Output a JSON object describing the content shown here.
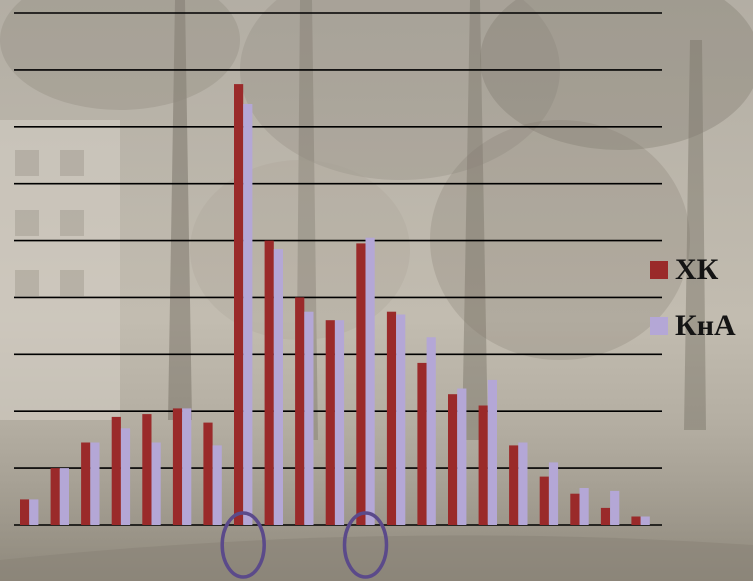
{
  "colors": {
    "series_xk": "#9a2a2a",
    "series_kna": "#b4a7d6",
    "gridline": "#000000",
    "marker_circle": "#5b4a8a",
    "background": "#bdb6aa"
  },
  "chart_data": {
    "type": "bar",
    "title": "",
    "xlabel": "",
    "ylabel": "",
    "grid": true,
    "legend_position": "right",
    "ylim": [
      0,
      9
    ],
    "y_gridlines": [
      0,
      1,
      2,
      3,
      4,
      5,
      6,
      7,
      8,
      9
    ],
    "categories": [
      "",
      "",
      "",
      "",
      "",
      "",
      "",
      "",
      "",
      "",
      "",
      "",
      "",
      "",
      "",
      "",
      "",
      "",
      "",
      "",
      ""
    ],
    "series": [
      {
        "name": "ХК",
        "color": "#9a2a2a",
        "values": [
          0.45,
          1.0,
          1.45,
          1.9,
          1.95,
          2.05,
          1.8,
          7.75,
          5.0,
          4.0,
          3.6,
          4.95,
          3.75,
          2.85,
          2.3,
          2.1,
          1.4,
          0.85,
          0.55,
          0.3,
          0.15
        ]
      },
      {
        "name": "КнА",
        "color": "#b4a7d6",
        "values": [
          0.45,
          1.0,
          1.45,
          1.7,
          1.45,
          2.05,
          1.4,
          7.4,
          4.85,
          3.75,
          3.6,
          5.05,
          3.7,
          3.3,
          2.4,
          2.55,
          1.45,
          1.1,
          0.65,
          0.6,
          0.15
        ]
      }
    ],
    "highlighted_categories": [
      7,
      11
    ]
  },
  "legend": {
    "items": [
      {
        "label": "ХК",
        "color": "#9a2a2a"
      },
      {
        "label": "КнА",
        "color": "#b4a7d6"
      }
    ]
  }
}
